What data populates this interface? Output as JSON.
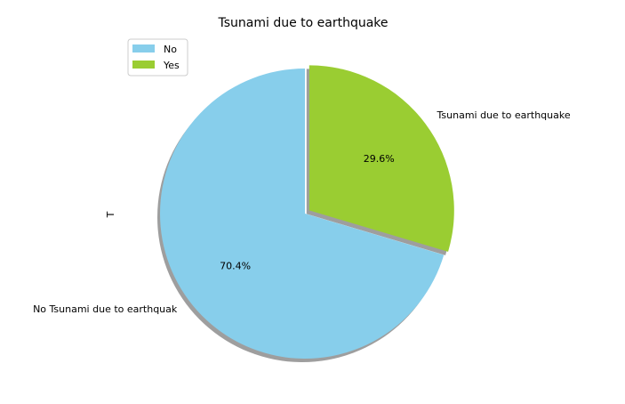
{
  "chart_data": {
    "type": "pie",
    "title": "Tsunami due to earthquake",
    "ylabel": "T",
    "slices": [
      {
        "legend": "No",
        "outer_label": "No Tsunami due to earthquak",
        "pct_label": "70.4%",
        "value": 70.4,
        "color": "#87ceeb"
      },
      {
        "legend": "Yes",
        "outer_label": "Tsunami due to earthquake",
        "pct_label": "29.6%",
        "value": 29.6,
        "color": "#9acd32",
        "exploded": true
      }
    ],
    "start_angle_deg": 90,
    "shadow": true,
    "legend_placement": "upper-left"
  }
}
